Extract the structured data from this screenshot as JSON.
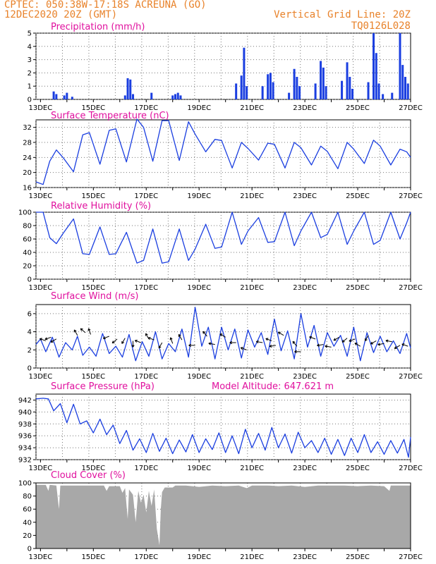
{
  "header": {
    "line1": "CPTEC:  050:38W-17:18S  ACREUNA (GO)",
    "line2": "12DEC2020 20Z (GMT)",
    "right1": "Vertical Grid Line: 20Z",
    "right2": "TQ0126L028"
  },
  "colors": {
    "header": "#e8822a",
    "title": "#e0109e",
    "line": "#1a3ee0",
    "cloud": "#a8a8a8"
  },
  "x_ticks": [
    "13DEC",
    "15DEC",
    "17DEC",
    "19DEC",
    "21DEC",
    "23DEC",
    "25DEC",
    "27DEC"
  ],
  "chart_data": [
    {
      "type": "bar",
      "title": "Precipitation (mm/h)",
      "ylim": [
        0,
        5
      ],
      "yticks": [
        0,
        1,
        2,
        3,
        4,
        5
      ],
      "x_range_days": [
        12.83,
        27.0
      ],
      "events": [
        [
          13.5,
          0.6
        ],
        [
          13.6,
          0.4
        ],
        [
          13.9,
          0.3
        ],
        [
          14.0,
          0.5
        ],
        [
          14.2,
          0.2
        ],
        [
          16.2,
          0.3
        ],
        [
          16.3,
          1.6
        ],
        [
          16.4,
          1.5
        ],
        [
          16.5,
          0.4
        ],
        [
          17.2,
          0.5
        ],
        [
          18.0,
          0.3
        ],
        [
          18.1,
          0.4
        ],
        [
          18.2,
          0.5
        ],
        [
          18.3,
          0.3
        ],
        [
          20.4,
          1.2
        ],
        [
          20.6,
          1.8
        ],
        [
          20.7,
          3.9
        ],
        [
          20.8,
          1.0
        ],
        [
          21.4,
          1.0
        ],
        [
          21.6,
          1.9
        ],
        [
          21.7,
          2.0
        ],
        [
          21.8,
          1.3
        ],
        [
          22.4,
          0.5
        ],
        [
          22.6,
          2.3
        ],
        [
          22.7,
          1.7
        ],
        [
          22.8,
          1.0
        ],
        [
          23.4,
          1.2
        ],
        [
          23.6,
          2.9
        ],
        [
          23.7,
          2.4
        ],
        [
          23.8,
          1.0
        ],
        [
          24.4,
          1.4
        ],
        [
          24.6,
          2.8
        ],
        [
          24.7,
          1.7
        ],
        [
          24.8,
          0.8
        ],
        [
          25.4,
          1.3
        ],
        [
          25.6,
          5.0
        ],
        [
          25.7,
          3.5
        ],
        [
          25.8,
          1.2
        ],
        [
          25.95,
          0.4
        ],
        [
          26.3,
          0.5
        ],
        [
          26.6,
          5.0
        ],
        [
          26.7,
          2.6
        ],
        [
          26.8,
          1.7
        ],
        [
          26.9,
          1.2
        ]
      ]
    },
    {
      "type": "line",
      "title": "Surface Temperature (nC)",
      "ylim": [
        16,
        34
      ],
      "yticks": [
        16,
        20,
        24,
        28,
        32
      ],
      "points": [
        [
          12.83,
          17.5
        ],
        [
          13.1,
          16.8
        ],
        [
          13.35,
          23.0
        ],
        [
          13.6,
          26.0
        ],
        [
          13.85,
          24.0
        ],
        [
          14.25,
          20.2
        ],
        [
          14.6,
          30.0
        ],
        [
          14.85,
          30.6
        ],
        [
          15.25,
          22.2
        ],
        [
          15.6,
          31.2
        ],
        [
          15.85,
          31.6
        ],
        [
          16.25,
          22.8
        ],
        [
          16.65,
          34.2
        ],
        [
          16.9,
          32.0
        ],
        [
          17.25,
          23.0
        ],
        [
          17.6,
          33.8
        ],
        [
          17.85,
          33.8
        ],
        [
          18.25,
          23.2
        ],
        [
          18.6,
          33.5
        ],
        [
          18.85,
          30.2
        ],
        [
          19.25,
          25.5
        ],
        [
          19.6,
          28.8
        ],
        [
          19.85,
          28.5
        ],
        [
          20.25,
          21.2
        ],
        [
          20.6,
          28.0
        ],
        [
          20.85,
          26.4
        ],
        [
          21.25,
          23.3
        ],
        [
          21.6,
          27.8
        ],
        [
          21.85,
          27.5
        ],
        [
          22.25,
          21.2
        ],
        [
          22.6,
          28.0
        ],
        [
          22.85,
          26.6
        ],
        [
          23.25,
          22.0
        ],
        [
          23.6,
          27.0
        ],
        [
          23.85,
          25.6
        ],
        [
          24.25,
          21.0
        ],
        [
          24.6,
          28.0
        ],
        [
          24.85,
          26.2
        ],
        [
          25.25,
          22.4
        ],
        [
          25.6,
          28.6
        ],
        [
          25.85,
          27.0
        ],
        [
          26.25,
          22.0
        ],
        [
          26.6,
          26.2
        ],
        [
          26.85,
          25.5
        ],
        [
          27.0,
          24.0
        ]
      ]
    },
    {
      "type": "line",
      "title": "Relative Humidity (%)",
      "ylim": [
        0,
        100
      ],
      "yticks": [
        0,
        20,
        40,
        60,
        80,
        100
      ],
      "points": [
        [
          12.83,
          100
        ],
        [
          13.1,
          100
        ],
        [
          13.35,
          62
        ],
        [
          13.6,
          53
        ],
        [
          13.85,
          68
        ],
        [
          14.25,
          90
        ],
        [
          14.6,
          38
        ],
        [
          14.85,
          37
        ],
        [
          15.25,
          78
        ],
        [
          15.6,
          37
        ],
        [
          15.85,
          38
        ],
        [
          16.25,
          70
        ],
        [
          16.65,
          24
        ],
        [
          16.9,
          28
        ],
        [
          17.25,
          75
        ],
        [
          17.6,
          24
        ],
        [
          17.85,
          26
        ],
        [
          18.25,
          75
        ],
        [
          18.6,
          28
        ],
        [
          18.85,
          45
        ],
        [
          19.25,
          82
        ],
        [
          19.6,
          46
        ],
        [
          19.85,
          48
        ],
        [
          20.25,
          100
        ],
        [
          20.6,
          52
        ],
        [
          20.85,
          72
        ],
        [
          21.25,
          92
        ],
        [
          21.6,
          55
        ],
        [
          21.85,
          56
        ],
        [
          22.25,
          100
        ],
        [
          22.6,
          50
        ],
        [
          22.85,
          72
        ],
        [
          23.25,
          100
        ],
        [
          23.6,
          62
        ],
        [
          23.85,
          67
        ],
        [
          24.25,
          100
        ],
        [
          24.6,
          52
        ],
        [
          24.85,
          72
        ],
        [
          25.25,
          100
        ],
        [
          25.6,
          52
        ],
        [
          25.85,
          58
        ],
        [
          26.25,
          100
        ],
        [
          26.6,
          60
        ],
        [
          26.85,
          84
        ],
        [
          27.0,
          100
        ]
      ]
    },
    {
      "type": "line",
      "title": "Surface Wind (m/s)",
      "ylim": [
        0,
        7
      ],
      "yticks": [
        0,
        2,
        4,
        6
      ],
      "points": [
        [
          12.83,
          2.6
        ],
        [
          13.0,
          3.2
        ],
        [
          13.2,
          1.8
        ],
        [
          13.45,
          3.4
        ],
        [
          13.7,
          1.2
        ],
        [
          13.95,
          2.8
        ],
        [
          14.2,
          2.0
        ],
        [
          14.4,
          3.5
        ],
        [
          14.6,
          1.4
        ],
        [
          14.85,
          2.3
        ],
        [
          15.1,
          1.3
        ],
        [
          15.35,
          3.8
        ],
        [
          15.6,
          1.6
        ],
        [
          15.85,
          2.4
        ],
        [
          16.1,
          1.2
        ],
        [
          16.35,
          3.7
        ],
        [
          16.6,
          0.8
        ],
        [
          16.85,
          2.9
        ],
        [
          17.1,
          1.3
        ],
        [
          17.35,
          4.0
        ],
        [
          17.6,
          1.0
        ],
        [
          17.85,
          2.7
        ],
        [
          18.1,
          1.8
        ],
        [
          18.35,
          4.3
        ],
        [
          18.6,
          1.2
        ],
        [
          18.85,
          6.7
        ],
        [
          19.1,
          2.4
        ],
        [
          19.35,
          4.5
        ],
        [
          19.6,
          1.0
        ],
        [
          19.85,
          4.5
        ],
        [
          20.1,
          2.0
        ],
        [
          20.35,
          4.3
        ],
        [
          20.6,
          1.1
        ],
        [
          20.85,
          4.2
        ],
        [
          21.1,
          2.3
        ],
        [
          21.35,
          3.9
        ],
        [
          21.6,
          1.5
        ],
        [
          21.85,
          5.4
        ],
        [
          22.1,
          1.9
        ],
        [
          22.35,
          4.1
        ],
        [
          22.6,
          1.0
        ],
        [
          22.85,
          6.0
        ],
        [
          23.1,
          2.3
        ],
        [
          23.35,
          4.7
        ],
        [
          23.6,
          1.3
        ],
        [
          23.85,
          3.9
        ],
        [
          24.1,
          2.4
        ],
        [
          24.35,
          3.6
        ],
        [
          24.6,
          1.3
        ],
        [
          24.85,
          4.5
        ],
        [
          25.1,
          0.8
        ],
        [
          25.35,
          3.9
        ],
        [
          25.6,
          1.7
        ],
        [
          25.85,
          3.5
        ],
        [
          26.1,
          1.8
        ],
        [
          26.35,
          3.0
        ],
        [
          26.6,
          1.6
        ],
        [
          26.85,
          3.8
        ],
        [
          27.0,
          2.2
        ]
      ]
    },
    {
      "type": "line",
      "title": "Surface Pressure (hPa)",
      "annotation": "Model Altitude: 647.621 m",
      "ylim": [
        932,
        943
      ],
      "yticks": [
        932,
        934,
        936,
        938,
        940,
        942
      ],
      "points": [
        [
          12.83,
          942.2
        ],
        [
          13.1,
          942.3
        ],
        [
          13.3,
          942.2
        ],
        [
          13.5,
          940.2
        ],
        [
          13.75,
          941.4
        ],
        [
          14.0,
          938.2
        ],
        [
          14.25,
          941.3
        ],
        [
          14.5,
          938.0
        ],
        [
          14.75,
          938.5
        ],
        [
          15.0,
          936.5
        ],
        [
          15.25,
          938.8
        ],
        [
          15.5,
          936.2
        ],
        [
          15.75,
          937.8
        ],
        [
          16.0,
          934.7
        ],
        [
          16.25,
          936.9
        ],
        [
          16.5,
          933.6
        ],
        [
          16.75,
          935.5
        ],
        [
          17.0,
          933.2
        ],
        [
          17.25,
          936.4
        ],
        [
          17.5,
          933.4
        ],
        [
          17.75,
          935.6
        ],
        [
          18.0,
          933.0
        ],
        [
          18.25,
          935.3
        ],
        [
          18.5,
          933.3
        ],
        [
          18.75,
          936.2
        ],
        [
          19.0,
          933.2
        ],
        [
          19.25,
          935.5
        ],
        [
          19.5,
          933.7
        ],
        [
          19.75,
          936.5
        ],
        [
          20.0,
          933.2
        ],
        [
          20.25,
          936.0
        ],
        [
          20.5,
          933.0
        ],
        [
          20.75,
          937.1
        ],
        [
          21.0,
          934.0
        ],
        [
          21.25,
          936.4
        ],
        [
          21.5,
          933.6
        ],
        [
          21.75,
          937.4
        ],
        [
          22.0,
          934.0
        ],
        [
          22.25,
          936.3
        ],
        [
          22.5,
          933.1
        ],
        [
          22.75,
          936.6
        ],
        [
          23.0,
          934.0
        ],
        [
          23.25,
          935.2
        ],
        [
          23.5,
          933.2
        ],
        [
          23.75,
          935.6
        ],
        [
          24.0,
          932.9
        ],
        [
          24.25,
          935.4
        ],
        [
          24.5,
          932.7
        ],
        [
          24.75,
          935.6
        ],
        [
          25.0,
          933.2
        ],
        [
          25.25,
          936.2
        ],
        [
          25.5,
          933.2
        ],
        [
          25.75,
          935.0
        ],
        [
          26.0,
          932.9
        ],
        [
          26.25,
          935.2
        ],
        [
          26.5,
          933.1
        ],
        [
          26.75,
          935.4
        ],
        [
          26.92,
          932.4
        ],
        [
          27.0,
          935.8
        ]
      ]
    },
    {
      "type": "area",
      "title": "Cloud Cover (%)",
      "ylim": [
        0,
        100
      ],
      "yticks": [
        0,
        20,
        40,
        60,
        80,
        100
      ],
      "points": [
        [
          12.83,
          97
        ],
        [
          13.2,
          97
        ],
        [
          13.3,
          88
        ],
        [
          13.35,
          97
        ],
        [
          13.6,
          96
        ],
        [
          13.7,
          60
        ],
        [
          13.75,
          96
        ],
        [
          14.5,
          96
        ],
        [
          15.4,
          96
        ],
        [
          15.5,
          88
        ],
        [
          15.6,
          95
        ],
        [
          16.0,
          95
        ],
        [
          16.1,
          85
        ],
        [
          16.2,
          92
        ],
        [
          16.3,
          45
        ],
        [
          16.35,
          90
        ],
        [
          16.5,
          82
        ],
        [
          16.6,
          40
        ],
        [
          16.7,
          88
        ],
        [
          16.8,
          70
        ],
        [
          16.9,
          82
        ],
        [
          17.0,
          55
        ],
        [
          17.1,
          88
        ],
        [
          17.2,
          65
        ],
        [
          17.3,
          90
        ],
        [
          17.4,
          30
        ],
        [
          17.5,
          5
        ],
        [
          17.55,
          60
        ],
        [
          17.6,
          86
        ],
        [
          17.7,
          93
        ],
        [
          18.0,
          93
        ],
        [
          18.1,
          96
        ],
        [
          18.5,
          96
        ],
        [
          19.0,
          94
        ],
        [
          19.5,
          96
        ],
        [
          20.0,
          95
        ],
        [
          20.5,
          96
        ],
        [
          20.8,
          92
        ],
        [
          21.0,
          96
        ],
        [
          21.6,
          96
        ],
        [
          22.0,
          95
        ],
        [
          22.5,
          96
        ],
        [
          23.0,
          94
        ],
        [
          23.5,
          96
        ],
        [
          24.0,
          96
        ],
        [
          24.5,
          96
        ],
        [
          25.0,
          95
        ],
        [
          25.5,
          96
        ],
        [
          26.0,
          95
        ],
        [
          26.2,
          88
        ],
        [
          26.25,
          96
        ],
        [
          27.0,
          96
        ]
      ]
    }
  ],
  "wind_arrows": [
    [
      13.2,
      3.0,
      200
    ],
    [
      13.4,
      3.4,
      160
    ],
    [
      13.6,
      3.2,
      150
    ],
    [
      14.4,
      3.6,
      240
    ],
    [
      14.7,
      3.9,
      220
    ],
    [
      14.9,
      3.7,
      250
    ],
    [
      15.6,
      3.5,
      160
    ],
    [
      15.9,
      3.2,
      140
    ],
    [
      16.2,
      3.3,
      120
    ],
    [
      16.5,
      3.0,
      90
    ],
    [
      16.8,
      2.8,
      200
    ],
    [
      17.1,
      3.2,
      240
    ],
    [
      17.3,
      3.1,
      200
    ],
    [
      17.6,
      2.8,
      120
    ],
    [
      18.0,
      2.7,
      250
    ],
    [
      18.35,
      3.1,
      240
    ],
    [
      18.85,
      2.5,
      180
    ],
    [
      19.3,
      3.5,
      230
    ],
    [
      19.6,
      2.6,
      190
    ],
    [
      20.0,
      3.4,
      210
    ],
    [
      20.4,
      2.8,
      180
    ],
    [
      20.8,
      2.0,
      200
    ],
    [
      21.4,
      2.8,
      190
    ],
    [
      21.75,
      3.0,
      200
    ],
    [
      21.9,
      2.5,
      170
    ],
    [
      22.2,
      3.6,
      210
    ],
    [
      22.7,
      2.4,
      230
    ],
    [
      22.85,
      1.8,
      180
    ],
    [
      23.4,
      3.2,
      200
    ],
    [
      23.7,
      2.6,
      170
    ],
    [
      24.0,
      2.3,
      190
    ],
    [
      24.3,
      3.4,
      150
    ],
    [
      24.6,
      3.3,
      140
    ],
    [
      24.9,
      3.2,
      160
    ],
    [
      25.1,
      2.4,
      210
    ],
    [
      25.4,
      3.6,
      120
    ],
    [
      25.7,
      3.0,
      150
    ],
    [
      26.0,
      2.7,
      170
    ],
    [
      26.3,
      2.9,
      190
    ],
    [
      26.6,
      2.5,
      150
    ],
    [
      26.9,
      2.4,
      200
    ]
  ]
}
